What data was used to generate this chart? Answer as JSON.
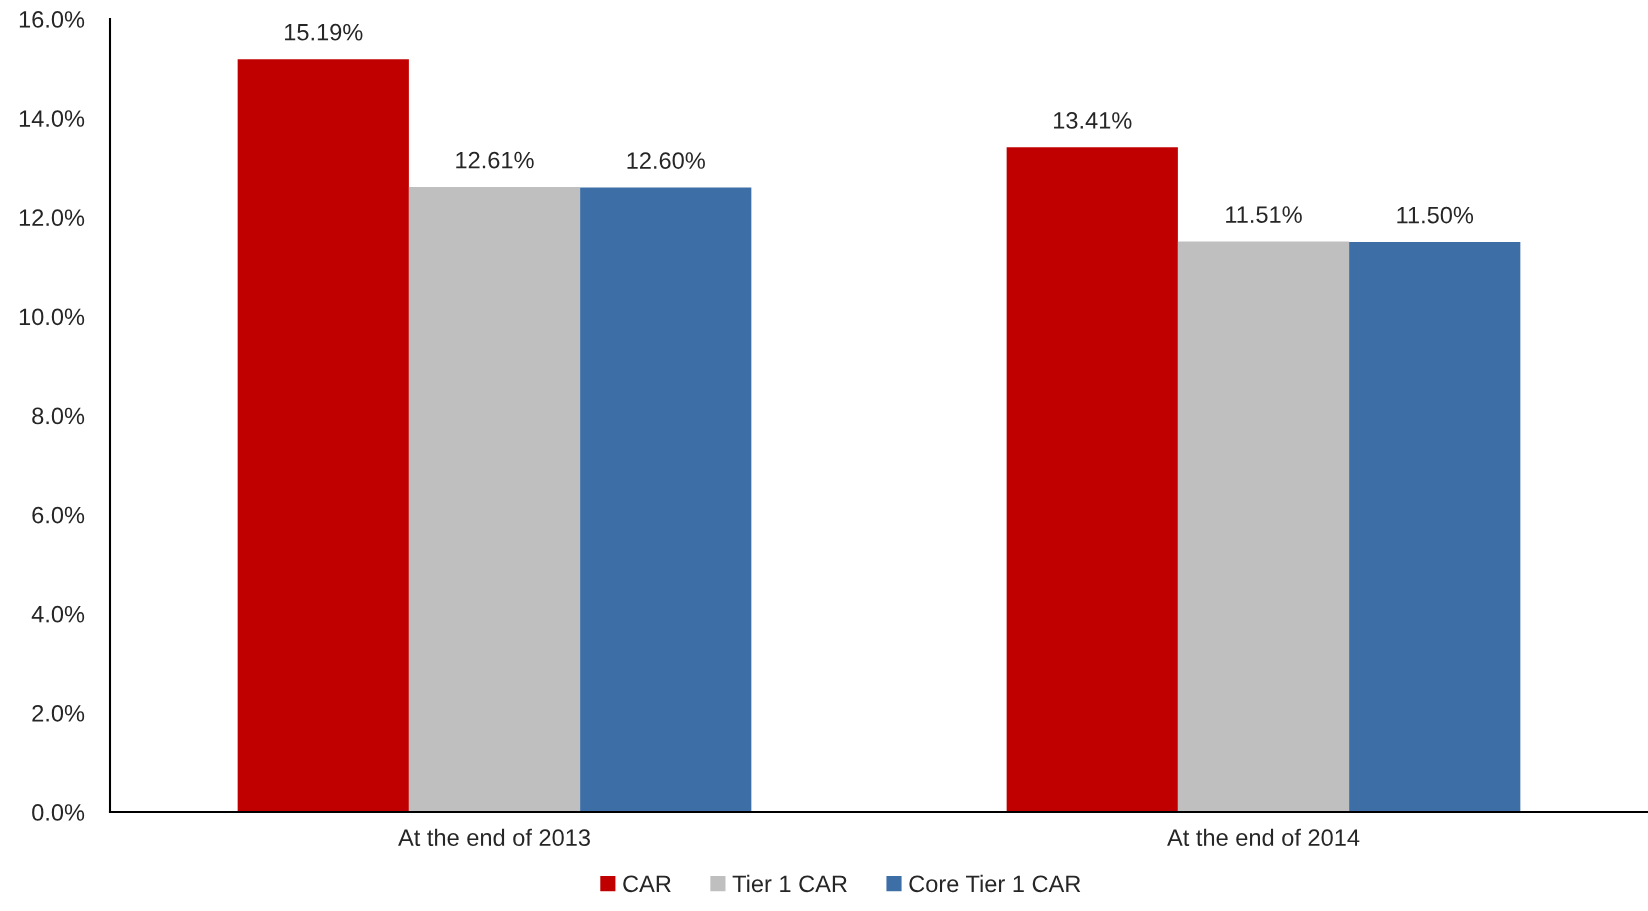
{
  "chart_data": {
    "type": "bar",
    "categories": [
      "At the end of 2013",
      "At the end of 2014"
    ],
    "series": [
      {
        "name": "CAR",
        "color": "#c00000",
        "values": [
          15.19,
          13.41
        ],
        "value_labels": [
          "15.19%",
          "13.41%"
        ]
      },
      {
        "name": "Tier 1 CAR",
        "color": "#bfbfbf",
        "values": [
          12.61,
          11.51
        ],
        "value_labels": [
          "12.61%",
          "11.51%"
        ]
      },
      {
        "name": "Core Tier 1 CAR",
        "color": "#3e6ea6",
        "values": [
          12.6,
          11.5
        ],
        "value_labels": [
          "12.60%",
          "11.50%"
        ]
      }
    ],
    "ylim": [
      0,
      16
    ],
    "yticks": [
      {
        "value": 0,
        "label": "0.0%"
      },
      {
        "value": 2,
        "label": "2.0%"
      },
      {
        "value": 4,
        "label": "4.0%"
      },
      {
        "value": 6,
        "label": "6.0%"
      },
      {
        "value": 8,
        "label": "8.0%"
      },
      {
        "value": 10,
        "label": "10.0%"
      },
      {
        "value": 12,
        "label": "12.0%"
      },
      {
        "value": 14,
        "label": "14.0%"
      },
      {
        "value": 16,
        "label": "16.0%"
      }
    ],
    "grid": false,
    "legend": "bottom"
  }
}
